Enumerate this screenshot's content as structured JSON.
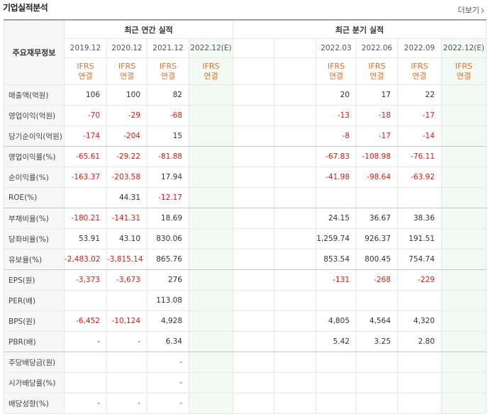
{
  "header": {
    "title": "기업실적분석",
    "more": "더보기"
  },
  "table": {
    "label_header": "주요재무정보",
    "groups": [
      {
        "label": "최근 연간 실적",
        "span": 4
      },
      {
        "label": "최근 분기 실적",
        "span": 6
      }
    ],
    "periods": [
      "2019.12",
      "2020.12",
      "2021.12",
      "2022.12(E)",
      null,
      null,
      "2022.03",
      "2022.06",
      "2022.09",
      "2022.12(E)"
    ],
    "accounting": [
      {
        "standard": "IFRS",
        "basis": "연결"
      },
      {
        "standard": "IFRS",
        "basis": "연결"
      },
      {
        "standard": "IFRS",
        "basis": "연결"
      },
      {
        "standard": "IFRS",
        "basis": "연결"
      },
      null,
      null,
      {
        "standard": "IFRS",
        "basis": "연결"
      },
      {
        "standard": "IFRS",
        "basis": "연결"
      },
      {
        "standard": "IFRS",
        "basis": "연결"
      },
      {
        "standard": "IFRS",
        "basis": "연결"
      }
    ],
    "rows": [
      {
        "label": "매출액(억원)",
        "values": [
          "106",
          "100",
          "82",
          null,
          null,
          null,
          "20",
          "17",
          "22",
          null
        ]
      },
      {
        "label": "영업이익(억원)",
        "values": [
          "-70",
          "-29",
          "-68",
          null,
          null,
          null,
          "-13",
          "-18",
          "-17",
          null
        ]
      },
      {
        "label": "당기순이익(억원)",
        "values": [
          "-174",
          "-204",
          "15",
          null,
          null,
          null,
          "-8",
          "-17",
          "-14",
          null
        ]
      },
      {
        "label": "영업이익률(%)",
        "values": [
          "-65.61",
          "-29.22",
          "-81.88",
          null,
          null,
          null,
          "-67.83",
          "-108.98",
          "-76.11",
          null
        ]
      },
      {
        "label": "순이익률(%)",
        "values": [
          "-163.37",
          "-203.58",
          "17.94",
          null,
          null,
          null,
          "-41.98",
          "-98.64",
          "-63.92",
          null
        ]
      },
      {
        "label": "ROE(%)",
        "values": [
          null,
          "44.31",
          "-12.17",
          null,
          null,
          null,
          null,
          null,
          null,
          null
        ]
      },
      {
        "label": "부채비율(%)",
        "values": [
          "-180.21",
          "-141.31",
          "18.69",
          null,
          null,
          null,
          "24.15",
          "36.67",
          "38.36",
          null
        ]
      },
      {
        "label": "당좌비율(%)",
        "values": [
          "53.91",
          "43.10",
          "830.06",
          null,
          null,
          null,
          "1,259.74",
          "926.37",
          "191.51",
          null
        ]
      },
      {
        "label": "유보율(%)",
        "values": [
          "-2,483.02",
          "-3,815.14",
          "865.76",
          null,
          null,
          null,
          "853.54",
          "800.45",
          "754.74",
          null
        ]
      },
      {
        "label": "EPS(원)",
        "values": [
          "-3,373",
          "-3,673",
          "276",
          null,
          null,
          null,
          "-131",
          "-268",
          "-229",
          null
        ]
      },
      {
        "label": "PER(배)",
        "values": [
          null,
          null,
          "113.08",
          null,
          null,
          null,
          null,
          null,
          null,
          null
        ]
      },
      {
        "label": "BPS(원)",
        "values": [
          "-6,452",
          "-10,124",
          "4,928",
          null,
          null,
          null,
          "4,805",
          "4,564",
          "4,320",
          null
        ]
      },
      {
        "label": "PBR(배)",
        "values": [
          "-",
          "-",
          "6.34",
          null,
          null,
          null,
          "5.42",
          "3.25",
          "2.80",
          null
        ]
      },
      {
        "label": "주당배당금(원)",
        "values": [
          null,
          null,
          "-",
          null,
          null,
          null,
          null,
          null,
          null,
          null
        ]
      },
      {
        "label": "시가배당률(%)",
        "values": [
          null,
          null,
          "-",
          null,
          null,
          null,
          null,
          null,
          null,
          null
        ]
      },
      {
        "label": "배당성향(%)",
        "values": [
          "-",
          "-",
          "-",
          null,
          null,
          null,
          null,
          null,
          null,
          null
        ]
      }
    ]
  }
}
